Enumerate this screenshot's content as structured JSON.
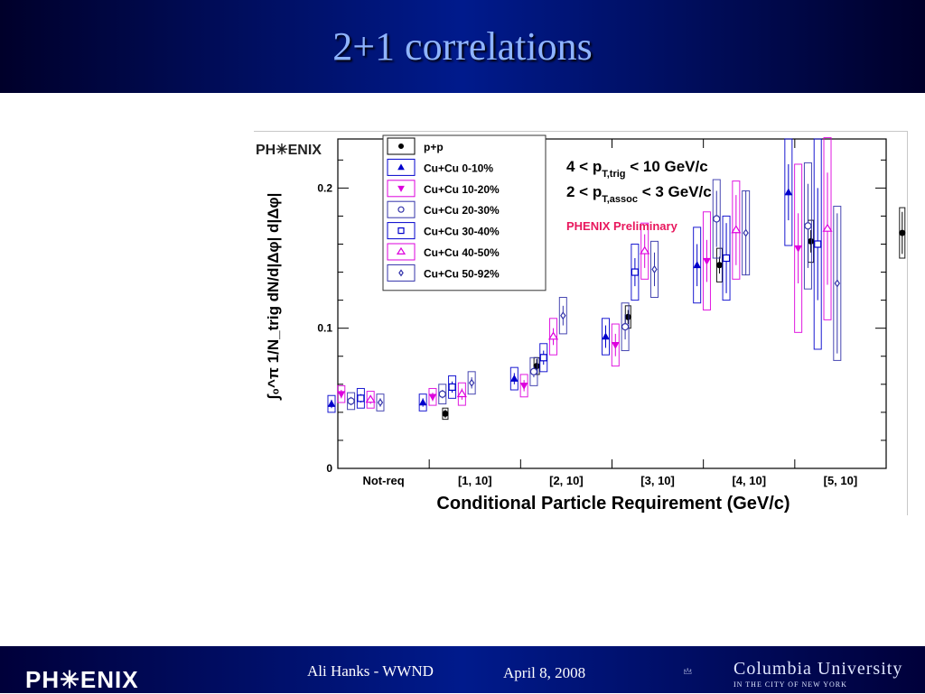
{
  "slide": {
    "title": "2+1 correlations",
    "author": "Ali Hanks - WWND",
    "date": "April 8, 2008",
    "logo_left": "PH✳ENIX",
    "logo_right": "Columbia University",
    "logo_right_sub": "IN THE CITY OF NEW YORK"
  },
  "chart_data": {
    "type": "scatter",
    "plot_logo": "PH✳ENIX",
    "xlabel": "Conditional Particle Requirement (GeV/c)",
    "ylabel": "∫₀^π 1/N_trig dN/d|Δφ| d|Δφ|",
    "categories": [
      "Not-req",
      "[1, 10]",
      "[2, 10]",
      "[3, 10]",
      "[4, 10]",
      "[5, 10]"
    ],
    "ylim": [
      0,
      0.235
    ],
    "yticks": [
      0,
      0.1,
      0.2
    ],
    "ytick_labels": [
      "0",
      "0.1",
      "0.2"
    ],
    "annotations": [
      {
        "text": "4 < p_T,trig < 10 GeV/c",
        "main_a": "4 < p",
        "sub": "T,trig",
        "main_b": " < 10 GeV/c"
      },
      {
        "text": "2 < p_T,assoc < 3 GeV/c",
        "main_a": "2 < p",
        "sub": "T,assoc",
        "main_b": " < 3 GeV/c"
      },
      {
        "text": "PHENIX Preliminary",
        "color": "#e8175d"
      }
    ],
    "legend_position": "top-left",
    "series": [
      {
        "name": "p+p",
        "marker": "dot",
        "color": "#000000",
        "values": [
          0.039,
          0.073,
          0.108,
          0.145,
          0.162,
          0.168
        ],
        "stat_err": [
          0.003,
          0.005,
          0.005,
          0.006,
          0.008,
          0.015
        ],
        "sys_err": [
          0.004,
          0.006,
          0.008,
          0.012,
          0.015,
          0.018
        ]
      },
      {
        "name": "Cu+Cu 0-10%",
        "marker": "triangle-up",
        "color": "#0000cc",
        "values": [
          0.046,
          0.047,
          0.064,
          0.094,
          0.145,
          0.197
        ],
        "stat_err": [
          0.003,
          0.003,
          0.004,
          0.008,
          0.015,
          0.02
        ],
        "sys_err": [
          0.006,
          0.006,
          0.008,
          0.013,
          0.027,
          0.038
        ]
      },
      {
        "name": "Cu+Cu 10-20%",
        "marker": "triangle-down",
        "color": "#dd00dd",
        "values": [
          0.053,
          0.051,
          0.059,
          0.088,
          0.148,
          0.157
        ],
        "stat_err": [
          0.003,
          0.003,
          0.004,
          0.008,
          0.015,
          0.025
        ],
        "sys_err": [
          0.006,
          0.006,
          0.008,
          0.015,
          0.035,
          0.06
        ]
      },
      {
        "name": "Cu+Cu 20-30%",
        "marker": "circle-open",
        "color": "#3333aa",
        "values": [
          0.048,
          0.053,
          0.069,
          0.101,
          0.178,
          0.173
        ],
        "stat_err": [
          0.003,
          0.003,
          0.004,
          0.009,
          0.02,
          0.03
        ],
        "sys_err": [
          0.006,
          0.007,
          0.01,
          0.017,
          0.028,
          0.045
        ]
      },
      {
        "name": "Cu+Cu 30-40%",
        "marker": "square-open",
        "color": "#0000cc",
        "values": [
          0.05,
          0.058,
          0.079,
          0.14,
          0.15,
          0.16
        ],
        "stat_err": [
          0.003,
          0.004,
          0.005,
          0.01,
          0.025,
          0.04
        ],
        "sys_err": [
          0.007,
          0.008,
          0.01,
          0.02,
          0.03,
          0.075
        ]
      },
      {
        "name": "Cu+Cu 40-50%",
        "marker": "triangle-up-open",
        "color": "#dd00dd",
        "values": [
          0.049,
          0.053,
          0.094,
          0.155,
          0.17,
          0.171
        ],
        "stat_err": [
          0.003,
          0.004,
          0.006,
          0.012,
          0.025,
          0.04
        ],
        "sys_err": [
          0.006,
          0.008,
          0.013,
          0.02,
          0.035,
          0.065
        ]
      },
      {
        "name": "Cu+Cu 50-92%",
        "marker": "diamond-open",
        "color": "#3333aa",
        "values": [
          0.047,
          0.061,
          0.109,
          0.142,
          0.168,
          0.132
        ],
        "stat_err": [
          0.003,
          0.004,
          0.007,
          0.012,
          0.03,
          0.05
        ],
        "sys_err": [
          0.006,
          0.008,
          0.013,
          0.02,
          0.03,
          0.055
        ]
      }
    ]
  }
}
